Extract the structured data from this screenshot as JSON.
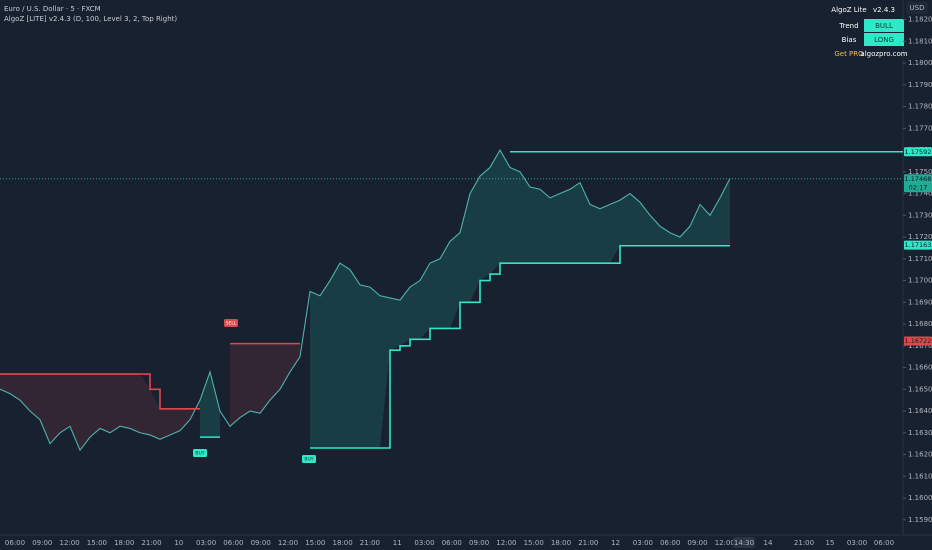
{
  "header": {
    "symbol": "Euro / U.S. Dollar · 5 · FXCM",
    "indicator": "AlgoZ [LITE] v2.4.3 (D, 100, Level 3, 2, Top Right)",
    "currency": "USD"
  },
  "panel": {
    "title": "AlgoZ Lite",
    "version": "v2.4.3",
    "rows": [
      [
        "Trend",
        "BULL"
      ],
      [
        "Bias",
        "LONG"
      ],
      [
        "Get PRO",
        "algozpro.com"
      ]
    ]
  },
  "chart_data": {
    "type": "line",
    "x_labels": [
      "06:00",
      "09:00",
      "12:00",
      "15:00",
      "18:00",
      "21:00",
      "10",
      "03:00",
      "06:00",
      "09:00",
      "12:00",
      "15:00",
      "18:00",
      "21:00",
      "11",
      "03:00",
      "06:00",
      "09:00",
      "12:00",
      "15:00",
      "18:00",
      "21:00",
      "12",
      "03:00",
      "06:00",
      "09:00",
      "12:00",
      "14:30",
      "14",
      "21:00",
      "15",
      "03:00",
      "06:00"
    ],
    "series": [
      {
        "color": "#4fb3a9",
        "values": [
          1.165,
          1.1648,
          1.1645,
          1.164,
          1.1636,
          1.1625,
          1.163,
          1.1633,
          1.1622,
          1.1628,
          1.1632,
          1.163,
          1.1633,
          1.1632,
          1.163,
          1.1629,
          1.1627,
          1.1629,
          1.1631,
          1.1636,
          1.1645,
          1.1658,
          1.164,
          1.1633,
          1.1637,
          1.164,
          1.1639,
          1.1645,
          1.165,
          1.1658,
          1.1665,
          1.1695,
          1.1693,
          1.17,
          1.1708,
          1.1705,
          1.1698,
          1.1697,
          1.1693,
          1.1692,
          1.1691,
          1.1697,
          1.17,
          1.1708,
          1.171,
          1.1718,
          1.1722,
          1.174,
          1.1748,
          1.1752,
          1.176,
          1.1752,
          1.175,
          1.1743,
          1.1742,
          1.1738,
          1.174,
          1.1742,
          1.1745,
          1.1735,
          1.1733,
          1.1735,
          1.1737,
          1.174,
          1.1736,
          1.173,
          1.1725,
          1.1722,
          1.172,
          1.1725,
          1.1735,
          1.173,
          1.1738,
          1.1747
        ]
      },
      {
        "color": "#e0474c",
        "values": [
          1.1657,
          1.1657,
          1.1657,
          1.1657,
          1.1657,
          1.1657,
          1.1657,
          1.1657,
          1.1657,
          1.1657,
          1.1657,
          1.1657,
          1.1657,
          1.1657,
          1.1657,
          1.165,
          1.1641,
          1.1641,
          1.1641,
          1.1641,
          1.1641,
          null,
          null,
          1.1671,
          1.1671,
          1.1671,
          1.1671,
          1.1671,
          1.1671,
          1.1671,
          1.1671,
          null,
          null,
          null,
          null,
          null,
          null,
          null,
          null,
          null,
          null,
          null,
          null,
          null,
          null,
          null,
          null,
          null,
          null,
          null,
          null,
          null,
          null,
          null,
          null,
          null,
          null,
          null,
          null,
          null,
          null,
          null,
          null,
          null,
          null,
          null,
          null,
          null,
          null,
          null,
          null,
          null,
          null,
          null
        ]
      },
      {
        "color": "#2ee8c8",
        "values": [
          null,
          null,
          null,
          null,
          null,
          null,
          null,
          null,
          null,
          null,
          null,
          null,
          null,
          null,
          null,
          null,
          null,
          null,
          null,
          null,
          1.1628,
          1.1628,
          1.1628,
          null,
          null,
          null,
          null,
          null,
          null,
          null,
          null,
          1.1623,
          1.1623,
          1.1623,
          1.1623,
          1.1623,
          1.1623,
          1.1623,
          1.1623,
          1.1668,
          1.167,
          1.1673,
          1.1673,
          1.1678,
          1.1678,
          1.1678,
          1.169,
          1.169,
          1.17,
          1.1703,
          1.1708,
          1.1708,
          1.1708,
          1.1708,
          1.1708,
          1.1708,
          1.1708,
          1.1708,
          1.1708,
          1.1708,
          1.1708,
          1.1708,
          1.1716,
          1.1716,
          1.1716,
          1.1716,
          1.1716,
          1.1716,
          1.1716,
          1.1716,
          1.1716,
          1.1716,
          1.1716,
          1.1716
        ]
      }
    ],
    "signals": [
      "BUY",
      "SELL",
      "BUY"
    ],
    "price_tags": [
      {
        "value": 1.17592,
        "color": "#2ee8c8"
      },
      {
        "value": 1.17468,
        "color": "#22ab94",
        "countdown": "02:17"
      },
      {
        "value": 1.17163,
        "color": "#2ee8c8"
      },
      {
        "value": 1.16722,
        "color": "#e0474c"
      }
    ],
    "ylim": [
      1.1583,
      1.1829
    ],
    "yticks": [
      {
        "value": 1.182,
        "label": "1.18200"
      },
      {
        "value": 1.181,
        "label": "1.18100"
      },
      {
        "value": 1.18,
        "label": "1.18000"
      },
      {
        "value": 1.179,
        "label": "1.17900"
      },
      {
        "value": 1.178,
        "label": "1.17800"
      },
      {
        "value": 1.177,
        "label": "1.17700"
      },
      {
        "value": 1.176,
        "label": "1.17600"
      },
      {
        "value": 1.175,
        "label": "1.17500"
      },
      {
        "value": 1.174,
        "label": "1.17400"
      },
      {
        "value": 1.173,
        "label": "1.17300"
      },
      {
        "value": 1.172,
        "label": "1.17200"
      },
      {
        "value": 1.171,
        "label": "1.17100"
      },
      {
        "value": 1.17,
        "label": "1.17000"
      },
      {
        "value": 1.169,
        "label": "1.16900"
      },
      {
        "value": 1.168,
        "label": "1.16800"
      },
      {
        "value": 1.167,
        "label": "1.16700"
      },
      {
        "value": 1.166,
        "label": "1.16600"
      },
      {
        "value": 1.165,
        "label": "1.16500"
      },
      {
        "value": 1.164,
        "label": "1.16400"
      },
      {
        "value": 1.163,
        "label": "1.16300"
      },
      {
        "value": 1.162,
        "label": "1.16200"
      },
      {
        "value": 1.161,
        "label": "1.16100"
      },
      {
        "value": 1.16,
        "label": "1.16000"
      },
      {
        "value": 1.159,
        "label": "1.15900"
      }
    ]
  }
}
